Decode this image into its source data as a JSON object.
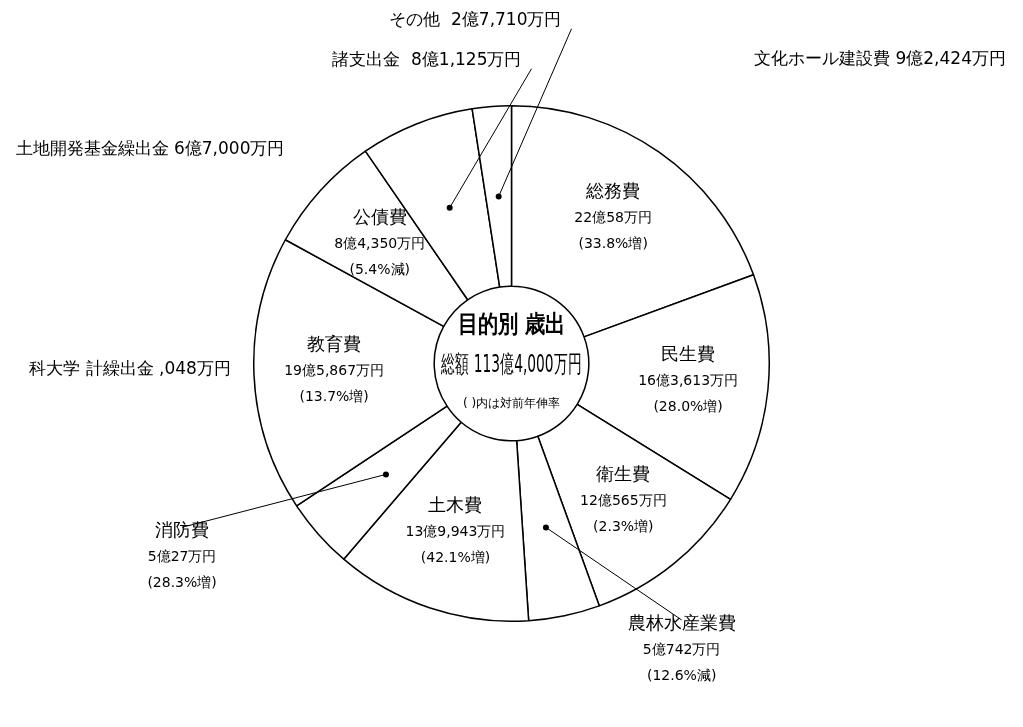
{
  "chart_data": {
    "type": "donut",
    "title": "目的別 歳出",
    "subtitle": "総額 113億4,000万円",
    "categories": [
      "総務費",
      "民生費",
      "衛生費",
      "農林水産業費",
      "土木費",
      "消防費",
      "教育費",
      "公債費",
      "諸支出金",
      "その他"
    ],
    "values": [
      19.41,
      14.43,
      10.63,
      4.47,
      12.34,
      4.41,
      17.28,
      7.44,
      7.15,
      2.44
    ],
    "colors": [
      "#ffffff",
      "#ffffff",
      "#ffffff",
      "#ffffff",
      "#ffffff",
      "#ffffff",
      "#ffffff",
      "#ffffff",
      "#ffffff",
      "#ffffff"
    ],
    "annotations": [
      {
        "text": "22億58万円",
        "x": "総務費"
      },
      {
        "text": "(33.8%増)",
        "x": "総務費"
      },
      {
        "text": "16億3,613万円",
        "x": "民生費"
      },
      {
        "text": "(28.0%増)",
        "x": "民生費"
      },
      {
        "text": "12億565万円",
        "x": "衛生費"
      },
      {
        "text": "(2.3%増)",
        "x": "衛生費"
      },
      {
        "text": "5億742万円",
        "x": "農林水産業費"
      },
      {
        "text": "(12.6%減)",
        "x": "農林水産業費"
      },
      {
        "text": "13億9,943万円",
        "x": "土木費"
      },
      {
        "text": "(42.1%増)",
        "x": "土木費"
      },
      {
        "text": "5億27万円",
        "x": "消防費"
      },
      {
        "text": "(28.3%増)",
        "x": "消防費"
      },
      {
        "text": "19億5,867万円",
        "x": "教育費"
      },
      {
        "text": "(13.7%増)",
        "x": "教育費"
      },
      {
        "text": "8億4,350万円",
        "x": "公債費"
      },
      {
        "text": "(5.4%減)",
        "x": "公債費"
      },
      {
        "text": "8億1,125万円",
        "x": "諸支出金"
      },
      {
        "text": "2億7,710万円",
        "x": "その他"
      },
      "( )内は対前年伸率",
      "文化ホール建設費 9億2,424万円",
      "土地開発基金繰出金 6億7,000万円",
      "科大学 計繰出金 ,048万円"
    ]
  }
}
